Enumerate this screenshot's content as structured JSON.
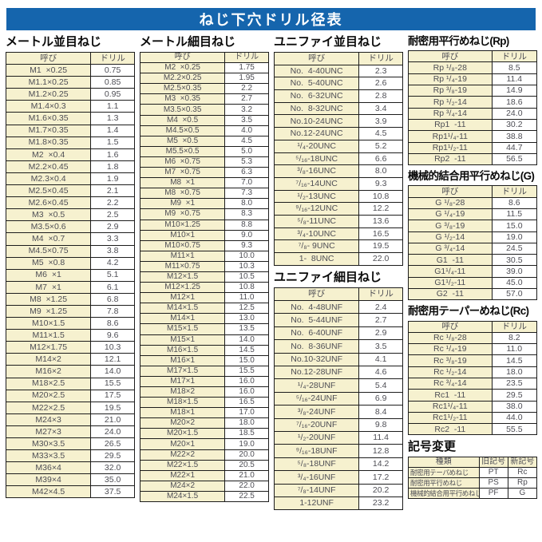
{
  "title": "ねじ下穴ドリル径表",
  "colors": {
    "title_bg": "#1565ad",
    "title_text": "#ffffff",
    "cell_cream": "#f6f1cf",
    "border": "#1c1c1c",
    "cell_text": "#4e4e55",
    "heading_text": "#0a0a0a"
  },
  "sections": {
    "metric_coarse": {
      "heading": "メートル並目ねじ",
      "columns": [
        "呼び",
        "ドリル"
      ],
      "rows": [
        [
          "M1  ×0.25",
          "0.75"
        ],
        [
          "M1.1×0.25",
          "0.85"
        ],
        [
          "M1.2×0.25",
          "0.95"
        ],
        [
          "M1.4×0.3",
          "1.1"
        ],
        [
          "M1.6×0.35",
          "1.3"
        ],
        [
          "M1.7×0.35",
          "1.4"
        ],
        [
          "M1.8×0.35",
          "1.5"
        ],
        [
          "M2  ×0.4",
          "1.6"
        ],
        [
          "M2.2×0.45",
          "1.8"
        ],
        [
          "M2.3×0.4",
          "1.9"
        ],
        [
          "M2.5×0.45",
          "2.1"
        ],
        [
          "M2.6×0.45",
          "2.2"
        ],
        [
          "M3  ×0.5",
          "2.5"
        ],
        [
          "M3.5×0.6",
          "2.9"
        ],
        [
          "M4  ×0.7",
          "3.3"
        ],
        [
          "M4.5×0.75",
          "3.8"
        ],
        [
          "M5  ×0.8",
          "4.2"
        ],
        [
          "M6  ×1",
          "5.1"
        ],
        [
          "M7  ×1",
          "6.1"
        ],
        [
          "M8  ×1.25",
          "6.8"
        ],
        [
          "M9  ×1.25",
          "7.8"
        ],
        [
          "M10×1.5",
          "8.6"
        ],
        [
          "M11×1.5",
          "9.6"
        ],
        [
          "M12×1.75",
          "10.3"
        ],
        [
          "M14×2",
          "12.1"
        ],
        [
          "M16×2",
          "14.0"
        ],
        [
          "M18×2.5",
          "15.5"
        ],
        [
          "M20×2.5",
          "17.5"
        ],
        [
          "M22×2.5",
          "19.5"
        ],
        [
          "M24×3",
          "21.0"
        ],
        [
          "M27×3",
          "24.0"
        ],
        [
          "M30×3.5",
          "26.5"
        ],
        [
          "M33×3.5",
          "29.5"
        ],
        [
          "M36×4",
          "32.0"
        ],
        [
          "M39×4",
          "35.0"
        ],
        [
          "M42×4.5",
          "37.5"
        ]
      ]
    },
    "metric_fine": {
      "heading": "メートル細目ねじ",
      "columns": [
        "呼び",
        "ドリル"
      ],
      "rows": [
        [
          "M2  ×0.25",
          "1.75"
        ],
        [
          "M2.2×0.25",
          "1.95"
        ],
        [
          "M2.5×0.35",
          "2.2"
        ],
        [
          "M3  ×0.35",
          "2.7"
        ],
        [
          "M3.5×0.35",
          "3.2"
        ],
        [
          "M4  ×0.5",
          "3.5"
        ],
        [
          "M4.5×0.5",
          "4.0"
        ],
        [
          "M5  ×0.5",
          "4.5"
        ],
        [
          "M5.5×0.5",
          "5.0"
        ],
        [
          "M6  ×0.75",
          "5.3"
        ],
        [
          "M7  ×0.75",
          "6.3"
        ],
        [
          "M8  ×1",
          "7.0"
        ],
        [
          "M8  ×0.75",
          "7.3"
        ],
        [
          "M9  ×1",
          "8.0"
        ],
        [
          "M9  ×0.75",
          "8.3"
        ],
        [
          "M10×1.25",
          "8.8"
        ],
        [
          "M10×1",
          "9.0"
        ],
        [
          "M10×0.75",
          "9.3"
        ],
        [
          "M11×1",
          "10.0"
        ],
        [
          "M11×0.75",
          "10.3"
        ],
        [
          "M12×1.5",
          "10.5"
        ],
        [
          "M12×1.25",
          "10.8"
        ],
        [
          "M12×1",
          "11.0"
        ],
        [
          "M14×1.5",
          "12.5"
        ],
        [
          "M14×1",
          "13.0"
        ],
        [
          "M15×1.5",
          "13.5"
        ],
        [
          "M15×1",
          "14.0"
        ],
        [
          "M16×1.5",
          "14.5"
        ],
        [
          "M16×1",
          "15.0"
        ],
        [
          "M17×1.5",
          "15.5"
        ],
        [
          "M17×1",
          "16.0"
        ],
        [
          "M18×2",
          "16.0"
        ],
        [
          "M18×1.5",
          "16.5"
        ],
        [
          "M18×1",
          "17.0"
        ],
        [
          "M20×2",
          "18.0"
        ],
        [
          "M20×1.5",
          "18.5"
        ],
        [
          "M20×1",
          "19.0"
        ],
        [
          "M22×2",
          "20.0"
        ],
        [
          "M22×1.5",
          "20.5"
        ],
        [
          "M22×1",
          "21.0"
        ],
        [
          "M24×2",
          "22.0"
        ],
        [
          "M24×1.5",
          "22.5"
        ]
      ]
    },
    "unified_coarse": {
      "heading": "ユニファイ並目ねじ",
      "columns": [
        "呼び",
        "ドリル"
      ],
      "rows": [
        [
          "No.  4-40UNC",
          "2.3"
        ],
        [
          "No.  5-40UNC",
          "2.6"
        ],
        [
          "No.  6-32UNC",
          "2.8"
        ],
        [
          "No.  8-32UNC",
          "3.4"
        ],
        [
          "No.10-24UNC",
          "3.9"
        ],
        [
          "No.12-24UNC",
          "4.5"
        ],
        [
          "¹/₄-20UNC",
          "5.2"
        ],
        [
          "⁵/₁₆-18UNC",
          "6.6"
        ],
        [
          "³/₈-16UNC",
          "8.0"
        ],
        [
          "⁷/₁₆-14UNC",
          "9.3"
        ],
        [
          "¹/₂-13UNC",
          "10.8"
        ],
        [
          "⁹/₁₆-12UNC",
          "12.2"
        ],
        [
          "⁵/₈-11UNC",
          "13.6"
        ],
        [
          "³/₄-10UNC",
          "16.5"
        ],
        [
          "⁷/₈- 9UNC",
          "19.5"
        ],
        [
          "1-  8UNC",
          "22.0"
        ]
      ]
    },
    "unified_fine": {
      "heading": "ユニファイ細目ねじ",
      "columns": [
        "呼び",
        "ドリル"
      ],
      "rows": [
        [
          "No.  4-48UNF",
          "2.4"
        ],
        [
          "No.  5-44UNF",
          "2.7"
        ],
        [
          "No.  6-40UNF",
          "2.9"
        ],
        [
          "No.  8-36UNF",
          "3.5"
        ],
        [
          "No.10-32UNF",
          "4.1"
        ],
        [
          "No.12-28UNF",
          "4.6"
        ],
        [
          "¹/₄-28UNF",
          "5.4"
        ],
        [
          "⁵/₁₆-24UNF",
          "6.9"
        ],
        [
          "³/₈-24UNF",
          "8.4"
        ],
        [
          "⁷/₁₆-20UNF",
          "9.8"
        ],
        [
          "¹/₂-20UNF",
          "11.4"
        ],
        [
          "⁹/₁₆-18UNF",
          "12.8"
        ],
        [
          "⁵/₈-18UNF",
          "14.2"
        ],
        [
          "³/₄-16UNF",
          "17.2"
        ],
        [
          "⁷/₈-14UNF",
          "20.2"
        ],
        [
          "1-12UNF",
          "23.2"
        ]
      ]
    },
    "rp": {
      "heading": "耐密用平行めねじ(Rp)",
      "columns": [
        "呼び",
        "ドリル"
      ],
      "rows": [
        [
          "Rp ¹/₈-28",
          "8.5"
        ],
        [
          "Rp ¹/₄-19",
          "11.4"
        ],
        [
          "Rp ³/₈-19",
          "14.9"
        ],
        [
          "Rp ¹/₂-14",
          "18.6"
        ],
        [
          "Rp ³/₄-14",
          "24.0"
        ],
        [
          "Rp1  -11",
          "30.2"
        ],
        [
          "Rp1¹/₄-11",
          "38.8"
        ],
        [
          "Rp1¹/₂-11",
          "44.7"
        ],
        [
          "Rp2  -11",
          "56.5"
        ]
      ]
    },
    "g": {
      "heading": "機械的結合用平行めねじ(G)",
      "columns": [
        "呼び",
        "ドリル"
      ],
      "rows": [
        [
          "G ¹/₈-28",
          "8.6"
        ],
        [
          "G ¹/₄-19",
          "11.5"
        ],
        [
          "G ³/₈-19",
          "15.0"
        ],
        [
          "G ¹/₂-14",
          "19.0"
        ],
        [
          "G ³/₄-14",
          "24.5"
        ],
        [
          "G1  -11",
          "30.5"
        ],
        [
          "G1¹/₄-11",
          "39.0"
        ],
        [
          "G1¹/₂-11",
          "45.0"
        ],
        [
          "G2  -11",
          "57.0"
        ]
      ]
    },
    "rc": {
      "heading": "耐密用テーパーめねじ(Rc)",
      "columns": [
        "呼び",
        "ドリル"
      ],
      "rows": [
        [
          "Rc ¹/₈-28",
          "8.2"
        ],
        [
          "Rc ¹/₄-19",
          "11.0"
        ],
        [
          "Rc ³/₈-19",
          "14.5"
        ],
        [
          "Rc ¹/₂-14",
          "18.0"
        ],
        [
          "Rc ³/₄-14",
          "23.5"
        ],
        [
          "Rc1  -11",
          "29.5"
        ],
        [
          "Rc1¹/₄-11",
          "38.0"
        ],
        [
          "Rc1¹/₂-11",
          "44.0"
        ],
        [
          "Rc2  -11",
          "55.5"
        ]
      ]
    },
    "symbol_change": {
      "heading": "記号変更",
      "columns": [
        "種類",
        "旧記号",
        "新記号"
      ],
      "rows": [
        [
          "耐密用テーパめねじ",
          "PT",
          "Rc"
        ],
        [
          "耐密用平行めねじ",
          "PS",
          "Rp"
        ],
        [
          "機械的結合用平行めねじ",
          "PF",
          "G"
        ]
      ]
    }
  }
}
